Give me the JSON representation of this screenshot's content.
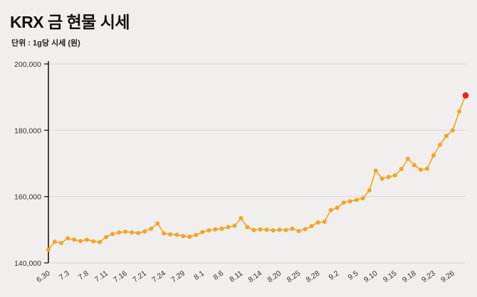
{
  "header": {
    "title": "KRX 금 현물 시세",
    "unit_label": "단위 : 1g당 시세 (원)"
  },
  "chart_data": {
    "type": "line",
    "title": "KRX 금 현물 시세",
    "ylabel": "1g당 시세 (원)",
    "ylim": [
      140000,
      200000
    ],
    "yticks": [
      140000,
      160000,
      180000,
      200000
    ],
    "ytick_labels": [
      "140,000",
      "160,000",
      "180,000",
      "200,000"
    ],
    "grid": true,
    "legend": "none",
    "label_every": 3,
    "x_tick_labels": [
      "6.30",
      "7.3",
      "7.8",
      "7.11",
      "7.16",
      "7.21",
      "7.24",
      "7.29",
      "8.1",
      "8.6",
      "8.11",
      "8.14",
      "8.20",
      "8.25",
      "8.28",
      "9.2",
      "9.5",
      "9.10",
      "9.15",
      "9.18",
      "9.23",
      "9.26"
    ],
    "x": [
      "6.30",
      "7.1",
      "7.2",
      "7.3",
      "7.4",
      "7.7",
      "7.8",
      "7.9",
      "7.10",
      "7.11",
      "7.14",
      "7.15",
      "7.16",
      "7.17",
      "7.18",
      "7.21",
      "7.22",
      "7.23",
      "7.24",
      "7.25",
      "7.28",
      "7.29",
      "7.30",
      "7.31",
      "8.1",
      "8.4",
      "8.5",
      "8.6",
      "8.7",
      "8.8",
      "8.11",
      "8.12",
      "8.13",
      "8.14",
      "8.18",
      "8.19",
      "8.20",
      "8.21",
      "8.22",
      "8.25",
      "8.26",
      "8.27",
      "8.28",
      "8.29",
      "9.1",
      "9.2",
      "9.3",
      "9.4",
      "9.5",
      "9.8",
      "9.9",
      "9.10",
      "9.11",
      "9.12",
      "9.15",
      "9.16",
      "9.17",
      "9.18",
      "9.19",
      "9.22",
      "9.23",
      "9.24",
      "9.25",
      "9.26",
      "9.29",
      "9.30"
    ],
    "series": [
      {
        "name": "KRX 금 현물 시세",
        "values": [
          144000,
          146400,
          146000,
          147400,
          147000,
          146600,
          147000,
          146500,
          146300,
          147800,
          148700,
          149200,
          149400,
          149200,
          149000,
          149500,
          150300,
          151900,
          148900,
          148600,
          148500,
          148100,
          147900,
          148400,
          149300,
          149800,
          150100,
          150300,
          150800,
          151200,
          153500,
          150800,
          149900,
          150100,
          150000,
          149800,
          150000,
          149900,
          150300,
          149600,
          150200,
          151100,
          152200,
          152400,
          155900,
          156600,
          158200,
          158600,
          159000,
          159500,
          161900,
          167800,
          165400,
          165900,
          166400,
          168300,
          171400,
          169500,
          168100,
          168400,
          172400,
          175600,
          178300,
          180000,
          185700,
          190500
        ]
      }
    ],
    "highlight_last_point": true,
    "colors": {
      "line": "#F5A41B",
      "marker": "#F5A41B",
      "last_marker": "#E8261C",
      "grid": "#d8d8d8",
      "axis": "#1a1a1a",
      "background": "#f0efee"
    }
  }
}
